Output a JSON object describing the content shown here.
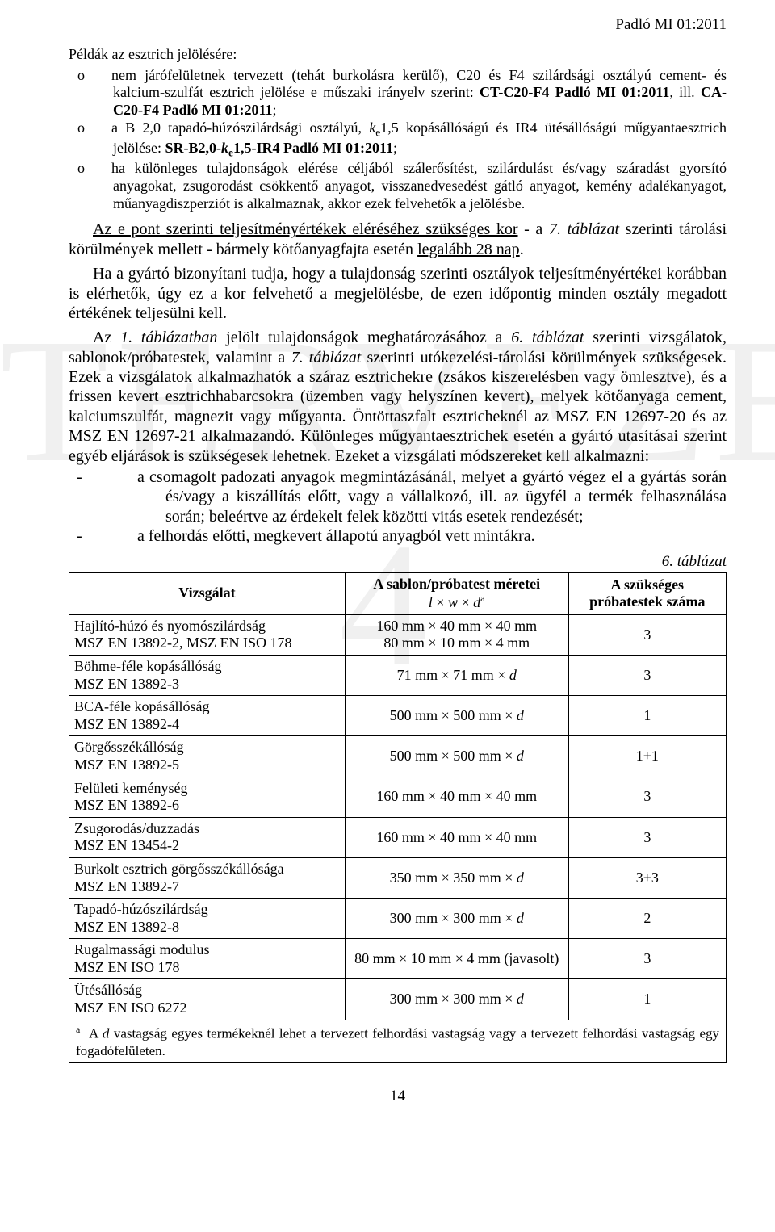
{
  "header_right": "Padló MI 01:2011",
  "intro_line": "Példák az esztrich jelölésére:",
  "bullets": [
    "nem járófelületnek tervezett (tehát burkolásra kerülő), C20 és F4 szilárdsági osztályú cement- és kalcium-szulfát esztrich jelölése e műszaki irányelv szerint: <b>CT-C20-F4 Padló MI 01:2011</b>, ill. <b>CA-C20-F4 Padló MI 01:2011</b>;",
    "a B 2,0 tapadó-húzószilárdsági osztályú, <i>k</i><sub>e</sub>1,5 kopásállóságú és IR4 ütésállóságú műgyantaesztrich jelölése: <b>SR-B2,0-<i>k</i><sub>e</sub>1,5-IR4 Padló MI 01:2011</b>;",
    "ha különleges tulajdonságok elérése céljából szálerősítést, szilárdulást és/vagy száradást gyorsító anyagokat, zsugorodást csökkentő anyagot, visszanedvesedést gátló anyagot, kemény adalékanyagot, műanyagdiszperziót is alkalmaznak, akkor ezek felvehetők a jelölésbe."
  ],
  "para1": "<u>Az e pont szerinti teljesítményértékek eléréséhez szükséges kor</u> - a <i>7. táblázat</i> szerinti tárolási körülmények mellett - bármely kötőanyagfajta esetén <u>legalább 28 nap</u>.",
  "para2": "Ha a gyártó bizonyítani tudja, hogy a tulajdonság szerinti osztályok teljesítményértékei korábban is elérhetők, úgy ez a kor felvehető a megjelölésbe, de ezen időpontig minden osztály megadott értékének teljesülni kell.",
  "para3": "Az <i>1. táblázatban</i> jelölt tulajdonságok meghatározásához a <i>6. táblázat</i> szerinti vizsgálatok, sablonok/próbatestek, valamint a <i>7. táblázat</i> szerinti utókezelési-tárolási körülmények szükségesek. Ezek a vizsgálatok alkalmazhatók a száraz esztrichekre (zsákos kiszerelésben vagy ömlesztve), és a frissen kevert esztrichhabarcsokra (üzemben vagy helyszínen kevert), melyek kötőanyaga cement, kalciumszulfát, magnezit vagy műgyanta. Öntöttaszfalt esztricheknél az MSZ EN 12697-20 és az MSZ EN 12697-21 alkalmazandó. Különleges műgyantaesztrichek esetén a gyártó utasításai szerint egyéb eljárások is szükségesek lehetnek. Ezeket a vizsgálati módszereket kell alkalmazni:",
  "dash1": "a csomagolt padozati anyagok megmintázásánál, melyet a gyártó végez el a gyártás során és/vagy a kiszállítás előtt, vagy a vállalkozó, ill. az ügyfél a termék felhasználása során; beleértve az érdekelt felek közötti vitás esetek rendezését;",
  "dash2": "a felhordás előtti, megkevert állapotú anyagból vett mintákra.",
  "table_caption": "6. táblázat",
  "th1": "Vizsgálat",
  "th2a": "A sablon/próbatest méretei",
  "th2b": "<i>l</i> × <i>w</i> × <i>d</i><span class=\"sup\">a</span>",
  "th3a": "A szükséges",
  "th3b": "próbatestek száma",
  "rows": [
    {
      "c1": "Hajlító-húzó és nyomószilárdság<br>MSZ EN 13892-2, MSZ EN ISO 178",
      "c2": "160 mm × 40 mm × 40 mm<br>80 mm × 10 mm × 4 mm",
      "c3": "3"
    },
    {
      "c1": "Böhme-féle kopásállóság<br>MSZ EN 13892-3",
      "c2": "71 mm × 71 mm × <i>d</i>",
      "c3": "3"
    },
    {
      "c1": "BCA-féle kopásállóság<br>MSZ EN 13892-4",
      "c2": "500 mm × 500 mm × <i>d</i>",
      "c3": "1"
    },
    {
      "c1": "Görgősszékállóság<br>MSZ EN 13892-5",
      "c2": "500 mm × 500 mm × <i>d</i>",
      "c3": "1+1"
    },
    {
      "c1": "Felületi keménység<br>MSZ EN 13892-6",
      "c2": "160 mm × 40 mm × 40 mm",
      "c3": "3"
    },
    {
      "c1": "Zsugorodás/duzzadás<br>MSZ EN 13454-2",
      "c2": "160 mm × 40 mm × 40 mm",
      "c3": "3"
    },
    {
      "c1": "Burkolt esztrich görgősszékállósága<br>MSZ EN 13892-7",
      "c2": "350 mm × 350 mm × <i>d</i>",
      "c3": "3+3"
    },
    {
      "c1": "Tapadó-húzószilárdság<br>MSZ EN 13892-8",
      "c2": "300 mm × 300 mm × <i>d</i>",
      "c3": "2"
    },
    {
      "c1": "Rugalmassági modulus<br>MSZ EN ISO 178",
      "c2": "80 mm × 10 mm × 4 mm (javasolt)",
      "c3": "3"
    },
    {
      "c1": "Ütésállóság<br>MSZ EN ISO 6272",
      "c2": "300 mm × 300 mm × <i>d</i>",
      "c3": "1"
    }
  ],
  "footnote": "<span class=\"sup\">a</span>&nbsp;&nbsp;A <i>d</i> vastagság egyes termékeknél lehet a tervezett felhordási vastagság vagy a tervezett felhordási vastagság egy fogadófelületen.",
  "page_number": "14"
}
